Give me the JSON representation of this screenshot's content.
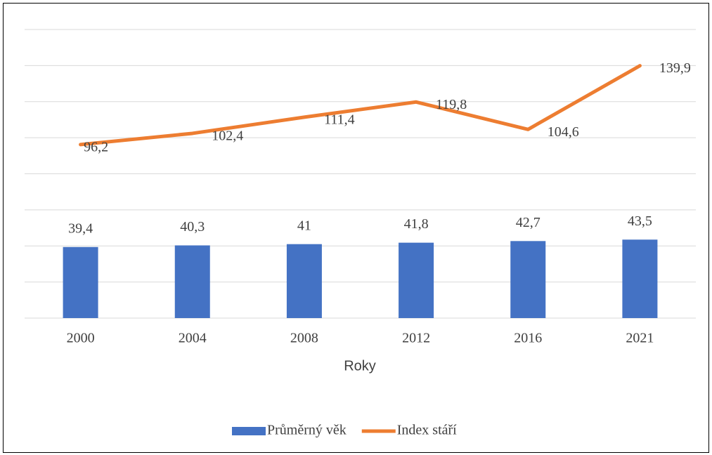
{
  "chart_data": {
    "type": "combo",
    "categories": [
      "2000",
      "2004",
      "2008",
      "2012",
      "2016",
      "2021"
    ],
    "x_label": "Roky",
    "series": [
      {
        "name": "Průměrný věk",
        "type": "bar",
        "color": "#4472c4",
        "values": [
          39.4,
          40.3,
          41,
          41.8,
          42.7,
          43.5
        ],
        "value_labels": [
          "39,4",
          "40,3",
          "41",
          "41,8",
          "42,7",
          "43,5"
        ]
      },
      {
        "name": "Index stáří",
        "type": "line",
        "color": "#ed7d31",
        "values": [
          96.2,
          102.4,
          111.4,
          119.8,
          104.6,
          139.9
        ],
        "value_labels": [
          "96,2",
          "102,4",
          "111,4",
          "119,8",
          "104,6",
          "139,9"
        ]
      }
    ],
    "ylim": [
      0,
      160
    ],
    "yticks": [
      0,
      20,
      40,
      60,
      80,
      100,
      120,
      140,
      160
    ],
    "grid": true,
    "legend": "bottom"
  }
}
